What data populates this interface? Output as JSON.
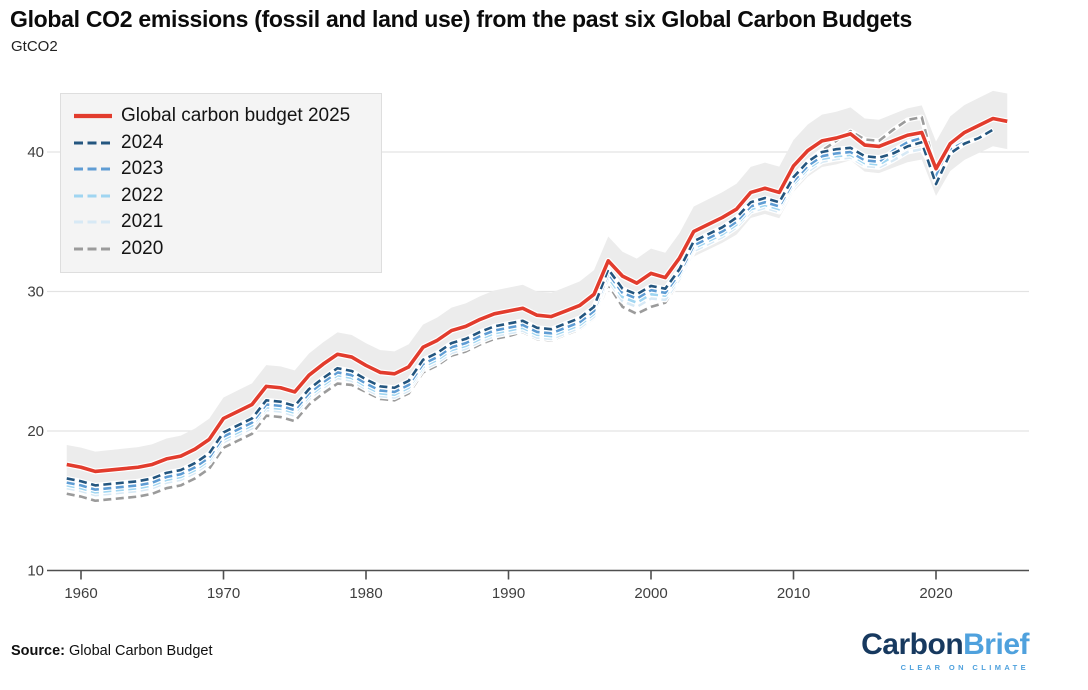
{
  "page": {
    "title": "Global CO2 emissions (fossil and land use) from the past six Global Carbon Budgets",
    "subtitle": "GtCO2",
    "source_label": "Source:",
    "source_text": " Global Carbon Budget",
    "logo": {
      "part1": "Carbon",
      "part2": "Brief",
      "tagline": "CLEAR ON CLIMATE"
    }
  },
  "colors": {
    "red": "#e23c2d",
    "navy": "#24567f",
    "blue_2023": "#5f9dd4",
    "blue_2022": "#9fd5f1",
    "blue_2021": "#d7e9f5",
    "gray_2020": "#9b9b9b",
    "band": "#ececec",
    "gridline": "#e3e3e3",
    "axis": "#4f4f4f",
    "tick_label": "#3f3f3f"
  },
  "chart_data": {
    "type": "line",
    "title": "Global CO2 emissions (fossil and land use) from the past six Global Carbon Budgets",
    "xlabel": "",
    "ylabel": "GtCO2",
    "x_ticks": [
      1960,
      1970,
      1980,
      1990,
      2000,
      2010,
      2020
    ],
    "y_ticks": [
      10,
      20,
      30,
      40
    ],
    "xlim": [
      1958.5,
      2026
    ],
    "ylim": [
      10,
      44.5
    ],
    "grid": "horizontal",
    "legend_position": "top-left",
    "band": {
      "label": "uncertainty-band",
      "half_width_start": 1.4,
      "half_width_growth_per_year": 0.009
    },
    "series": [
      {
        "name": "Global carbon budget 2025",
        "color": "#e23c2d",
        "dash": null,
        "width": 3.6,
        "band": true,
        "start_year": 1959,
        "values": [
          17.6,
          17.4,
          17.1,
          17.2,
          17.3,
          17.4,
          17.6,
          18.0,
          18.2,
          18.7,
          19.4,
          20.9,
          21.4,
          21.9,
          23.2,
          23.1,
          22.8,
          24.0,
          24.8,
          25.5,
          25.3,
          24.7,
          24.2,
          24.1,
          24.6,
          26.0,
          26.5,
          27.2,
          27.5,
          28.0,
          28.4,
          28.6,
          28.8,
          28.3,
          28.2,
          28.6,
          29.0,
          29.8,
          32.2,
          31.1,
          30.6,
          31.3,
          31.0,
          32.4,
          34.3,
          34.8,
          35.3,
          35.9,
          37.1,
          37.4,
          37.1,
          39.0,
          40.1,
          40.8,
          41.0,
          41.3,
          40.5,
          40.4,
          40.8,
          41.2,
          41.4,
          38.8,
          40.6,
          41.4,
          41.9,
          42.4,
          42.2
        ]
      },
      {
        "name": "2024",
        "color": "#24567f",
        "dash": [
          8,
          4.5
        ],
        "width": 2.6,
        "band": false,
        "start_year": 1959,
        "values": [
          16.6,
          16.4,
          16.1,
          16.2,
          16.3,
          16.4,
          16.6,
          17.0,
          17.2,
          17.7,
          18.4,
          19.9,
          20.4,
          20.9,
          22.2,
          22.1,
          21.8,
          23.0,
          23.8,
          24.5,
          24.3,
          23.7,
          23.2,
          23.1,
          23.6,
          25.1,
          25.6,
          26.3,
          26.6,
          27.1,
          27.5,
          27.7,
          27.9,
          27.4,
          27.3,
          27.7,
          28.1,
          28.9,
          31.6,
          30.2,
          29.8,
          30.4,
          30.2,
          31.6,
          33.6,
          34.1,
          34.6,
          35.3,
          36.4,
          36.7,
          36.4,
          38.2,
          39.3,
          40.0,
          40.2,
          40.3,
          39.7,
          39.6,
          39.9,
          40.4,
          40.7,
          37.7,
          39.9,
          40.6,
          41.0,
          41.6
        ]
      },
      {
        "name": "2023",
        "color": "#5f9dd4",
        "dash": [
          8,
          4.5
        ],
        "width": 2.6,
        "band": false,
        "start_year": 1959,
        "values": [
          16.3,
          16.1,
          15.8,
          15.9,
          16.0,
          16.1,
          16.3,
          16.7,
          16.9,
          17.4,
          18.1,
          19.6,
          20.1,
          20.6,
          21.9,
          21.8,
          21.5,
          22.7,
          23.5,
          24.2,
          24.0,
          23.4,
          22.9,
          22.8,
          23.3,
          24.8,
          25.3,
          26.0,
          26.3,
          26.8,
          27.2,
          27.4,
          27.6,
          27.1,
          27.0,
          27.4,
          27.8,
          28.6,
          31.3,
          29.9,
          29.5,
          30.1,
          29.9,
          31.3,
          33.3,
          33.8,
          34.3,
          35.0,
          36.1,
          36.4,
          36.1,
          37.9,
          39.0,
          39.7,
          39.9,
          40.0,
          39.4,
          39.3,
          40.1,
          40.7,
          41.0,
          38.3,
          40.2,
          40.7,
          41.0
        ]
      },
      {
        "name": "2022",
        "color": "#9fd5f1",
        "dash": [
          8,
          4.5
        ],
        "width": 2.6,
        "band": false,
        "start_year": 1959,
        "values": [
          16.1,
          15.9,
          15.6,
          15.7,
          15.8,
          15.9,
          16.1,
          16.5,
          16.7,
          17.2,
          17.9,
          19.4,
          19.9,
          20.4,
          21.7,
          21.6,
          21.3,
          22.5,
          23.3,
          24.0,
          23.8,
          23.2,
          22.7,
          22.6,
          23.1,
          24.6,
          25.1,
          25.8,
          26.1,
          26.6,
          27.0,
          27.2,
          27.4,
          26.9,
          26.8,
          27.2,
          27.6,
          28.4,
          31.0,
          29.6,
          29.2,
          29.8,
          29.7,
          31.1,
          33.1,
          33.6,
          34.1,
          34.8,
          35.9,
          36.2,
          35.9,
          37.7,
          38.8,
          39.5,
          39.7,
          39.8,
          39.2,
          39.1,
          39.7,
          40.5,
          40.8,
          38.4,
          40.2,
          40.7
        ]
      },
      {
        "name": "2021",
        "color": "#d7e9f5",
        "dash": [
          8,
          4.5
        ],
        "width": 2.6,
        "band": false,
        "start_year": 1959,
        "values": [
          15.9,
          15.7,
          15.4,
          15.5,
          15.6,
          15.7,
          15.9,
          16.3,
          16.5,
          17.0,
          17.7,
          19.2,
          19.7,
          20.2,
          21.5,
          21.4,
          21.1,
          22.3,
          23.1,
          23.8,
          23.6,
          23.0,
          22.5,
          22.4,
          22.9,
          24.4,
          24.9,
          25.6,
          25.9,
          26.4,
          26.8,
          27.0,
          27.2,
          26.7,
          26.6,
          27.0,
          27.4,
          28.2,
          30.8,
          29.3,
          28.9,
          29.5,
          29.4,
          30.9,
          32.9,
          33.4,
          33.9,
          34.6,
          35.7,
          36.0,
          35.7,
          37.5,
          38.6,
          39.3,
          39.5,
          39.6,
          39.0,
          38.9,
          39.4,
          40.0,
          40.2,
          38.5,
          40.1
        ]
      },
      {
        "name": "2020",
        "color": "#9b9b9b",
        "dash": [
          8,
          4.5
        ],
        "width": 2.6,
        "band": false,
        "start_year": 1959,
        "values": [
          15.5,
          15.3,
          15.0,
          15.1,
          15.2,
          15.3,
          15.5,
          15.9,
          16.1,
          16.6,
          17.3,
          18.8,
          19.3,
          19.8,
          21.1,
          21.0,
          20.7,
          21.9,
          22.7,
          23.4,
          23.3,
          22.8,
          22.3,
          22.2,
          22.7,
          24.2,
          24.7,
          25.4,
          25.7,
          26.2,
          26.6,
          26.8,
          27.1,
          26.6,
          26.5,
          26.9,
          27.3,
          28.1,
          30.5,
          28.9,
          28.4,
          28.9,
          29.2,
          30.8,
          32.9,
          33.7,
          34.4,
          35.1,
          36.2,
          36.5,
          36.2,
          38.0,
          39.3,
          40.1,
          40.8,
          41.5,
          40.9,
          40.8,
          41.6,
          42.3,
          42.5,
          38.6
        ]
      }
    ]
  }
}
